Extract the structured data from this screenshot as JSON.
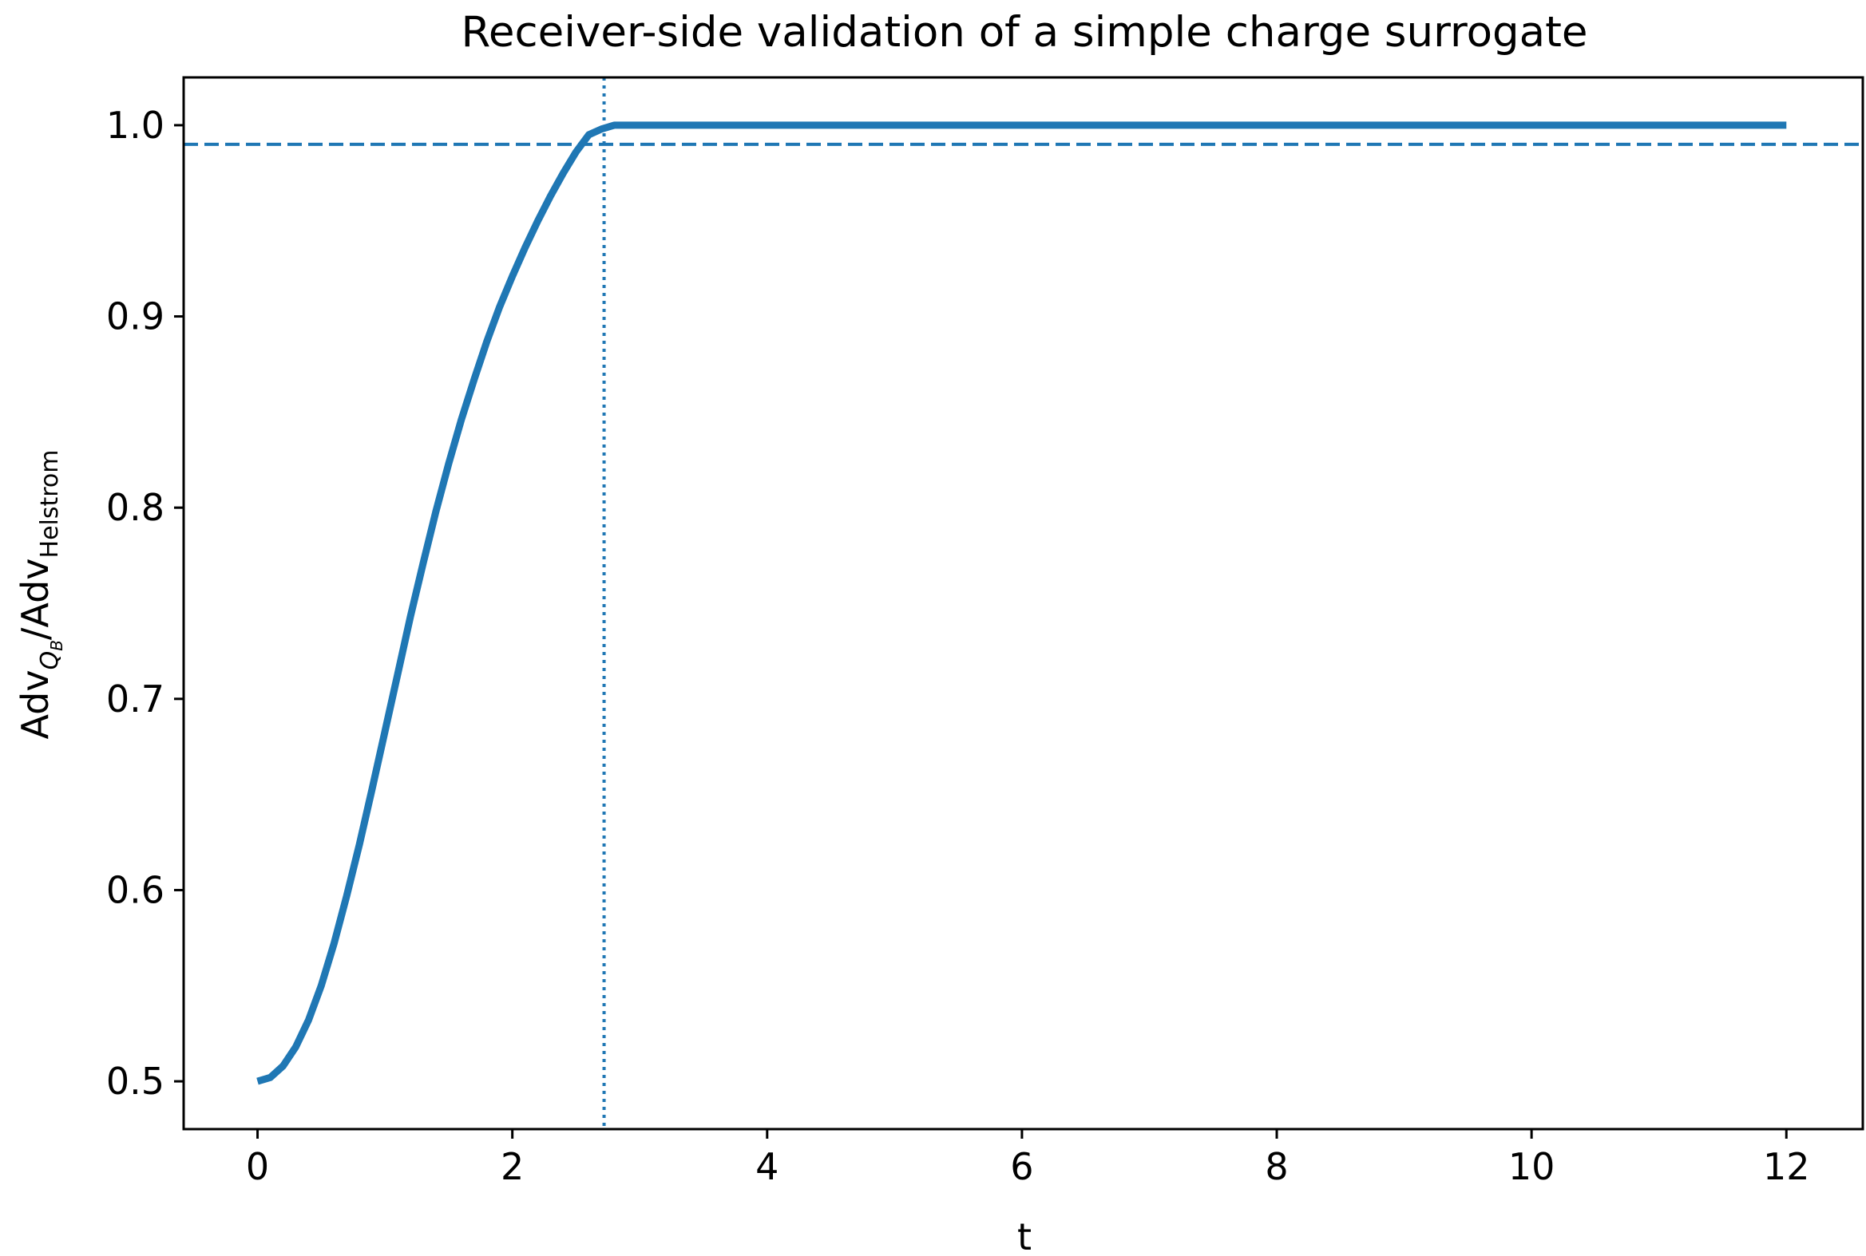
{
  "chart_data": {
    "type": "line",
    "title": "Receiver-side validation of a simple charge surrogate",
    "xlabel": "t",
    "ylabel": {
      "base1": "Adv",
      "sub1_main": "Q",
      "sub1_sub": "B",
      "slash": "/",
      "base2": "Adv",
      "sub2": "Helstrom"
    },
    "xlim": [
      -0.58,
      12.6
    ],
    "ylim": [
      0.475,
      1.025
    ],
    "xticks": [
      0,
      2,
      4,
      6,
      8,
      10,
      12
    ],
    "xtick_labels": [
      "0",
      "2",
      "4",
      "6",
      "8",
      "10",
      "12"
    ],
    "yticks": [
      0.5,
      0.6,
      0.7,
      0.8,
      0.9,
      1.0
    ],
    "ytick_labels": [
      "0.5",
      "0.6",
      "0.7",
      "0.8",
      "0.9",
      "1.0"
    ],
    "grid": false,
    "series": [
      {
        "color": "#1f77b4",
        "x": [
          0,
          0.1,
          0.2,
          0.3,
          0.4,
          0.5,
          0.6,
          0.7,
          0.8,
          0.9,
          1.0,
          1.1,
          1.2,
          1.3,
          1.4,
          1.5,
          1.6,
          1.7,
          1.8,
          1.9,
          2.0,
          2.1,
          2.2,
          2.3,
          2.4,
          2.5,
          2.6,
          2.7,
          2.8,
          3.0,
          4.0,
          5.0,
          6.0,
          7.0,
          8.0,
          9.0,
          10.0,
          11.0,
          12.0
        ],
        "y": [
          0.5,
          0.502,
          0.508,
          0.518,
          0.532,
          0.55,
          0.572,
          0.597,
          0.624,
          0.653,
          0.683,
          0.713,
          0.743,
          0.771,
          0.798,
          0.823,
          0.846,
          0.867,
          0.887,
          0.905,
          0.921,
          0.936,
          0.95,
          0.963,
          0.975,
          0.986,
          0.995,
          0.998,
          1.0,
          1.0,
          1.0,
          1.0,
          1.0,
          1.0,
          1.0,
          1.0,
          1.0,
          1.0,
          1.0
        ]
      }
    ],
    "reference_lines": [
      {
        "orientation": "horizontal",
        "value": 0.99,
        "style": "dashed",
        "color": "#1f77b4"
      },
      {
        "orientation": "vertical",
        "value": 2.72,
        "style": "dotted",
        "color": "#1f77b4"
      }
    ]
  }
}
